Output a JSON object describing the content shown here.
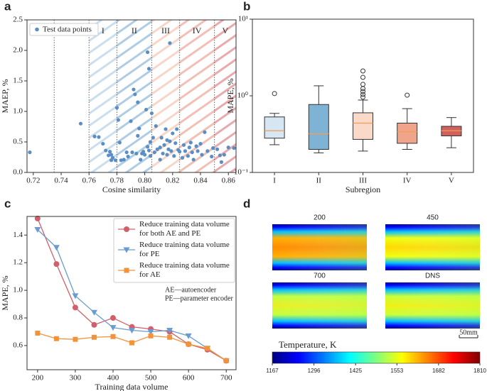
{
  "chart_data": [
    {
      "type": "scatter",
      "panel_label": "a",
      "xlabel": "Cosine similarity",
      "ylabel": "MAEP, %",
      "xlim": [
        0.7155,
        0.8655
      ],
      "ylim": [
        0,
        2.5
      ],
      "xticks": [
        0.72,
        0.74,
        0.76,
        0.78,
        {
          "value": 0.8,
          "label": "0.80"
        },
        0.82,
        0.84,
        0.86
      ],
      "yticks": [
        {
          "value": 0,
          "label": "0.0"
        },
        0.5,
        {
          "value": 1,
          "label": "1.0"
        },
        1.5,
        {
          "value": 2,
          "label": "2.0"
        },
        2.5
      ],
      "legend": "upper left",
      "boundaries": [
        0.735,
        0.76,
        0.78,
        0.805,
        0.825,
        0.85
      ],
      "regions": [
        {
          "label": "I",
          "color": "#9ec3e0"
        },
        {
          "label": "II",
          "color": "#6ea3cf"
        },
        {
          "label": "III",
          "color": "#f2b49a"
        },
        {
          "label": "IV",
          "color": "#e88a78"
        },
        {
          "label": "V",
          "color": "#d4646a"
        }
      ],
      "series": [
        {
          "name": "Test data points",
          "color": "#5a8ec4",
          "x": [
            0.7175,
            0.754,
            0.764,
            0.767,
            0.77,
            0.772,
            0.775,
            0.776,
            0.777,
            0.779,
            0.776,
            0.774,
            0.78,
            0.781,
            0.782,
            0.783,
            0.785,
            0.787,
            0.788,
            0.79,
            0.791,
            0.792,
            0.793,
            0.794,
            0.795,
            0.795,
            0.796,
            0.797,
            0.798,
            0.799,
            0.8,
            0.801,
            0.802,
            0.803,
            0.804,
            0.803,
            0.802,
            0.804,
            0.805,
            0.806,
            0.807,
            0.808,
            0.809,
            0.811,
            0.811,
            0.812,
            0.813,
            0.814,
            0.815,
            0.816,
            0.816,
            0.817,
            0.818,
            0.819,
            0.82,
            0.821,
            0.822,
            0.818,
            0.823,
            0.824,
            0.825,
            0.827,
            0.828,
            0.829,
            0.831,
            0.832,
            0.833,
            0.834,
            0.835,
            0.837,
            0.838,
            0.84,
            0.841,
            0.843,
            0.845,
            0.848,
            0.849,
            0.852,
            0.854,
            0.855,
            0.857,
            0.86,
            0.864
          ],
          "values": [
            0.33,
            0.8,
            0.59,
            0.58,
            0.47,
            0.36,
            0.34,
            0.29,
            0.24,
            0.2,
            0.2,
            0.28,
            1.06,
            0.86,
            0.49,
            0.2,
            0.21,
            0.33,
            0.26,
            0.84,
            0.33,
            1.36,
            1.28,
            0.31,
            1.15,
            0.6,
            0.72,
            0.21,
            0.31,
            0.34,
            0.29,
            1.03,
            0.42,
            0.36,
            0.27,
            1.7,
            1.97,
            0.5,
            0.97,
            0.57,
            0.33,
            0.76,
            0.38,
            0.41,
            0.21,
            0.57,
            0.31,
            0.45,
            0.71,
            0.29,
            0.53,
            0.38,
            0.51,
            0.35,
            0.64,
            0.27,
            0.48,
            2.12,
            0.71,
            0.37,
            0.34,
            0.24,
            0.45,
            0.35,
            0.27,
            0.41,
            0.49,
            0.33,
            0.21,
            0.43,
            0.35,
            0.47,
            0.29,
            0.66,
            0.35,
            0.26,
            0.4,
            0.38,
            0.28,
            0.17,
            0.29,
            0.41,
            0.4
          ]
        }
      ]
    },
    {
      "type": "box",
      "panel_label": "b",
      "xlabel": "Subregion",
      "ylabel": "MAPE, %",
      "ylog": true,
      "ylim": [
        0.1,
        10
      ],
      "yticks": [
        {
          "value": 0.1,
          "label": "10⁻¹"
        },
        {
          "value": 1,
          "label": "10⁰"
        },
        {
          "value": 10,
          "label": "10¹"
        }
      ],
      "categories": [
        "I",
        "II",
        "III",
        "IV",
        "V"
      ],
      "colors": [
        "#d6e6f2",
        "#7fb3d5",
        "#fbd9c9",
        "#f0a58b",
        "#d1615d"
      ],
      "median_color": "#f39c55",
      "boxes": [
        {
          "whislo": 0.23,
          "q1": 0.28,
          "med": 0.35,
          "q3": 0.53,
          "whishi": 0.59,
          "fliers": [
            1.07
          ]
        },
        {
          "whislo": 0.18,
          "q1": 0.2,
          "med": 0.32,
          "q3": 0.77,
          "whishi": 1.35,
          "fliers": []
        },
        {
          "whislo": 0.19,
          "q1": 0.27,
          "med": 0.44,
          "q3": 0.6,
          "whishi": 0.88,
          "fliers": [
            0.96,
            1.04,
            1.14,
            1.24,
            1.41,
            1.74,
            2.11
          ]
        },
        {
          "whislo": 0.2,
          "q1": 0.24,
          "med": 0.34,
          "q3": 0.44,
          "whishi": 0.68,
          "fliers": [
            1.02
          ]
        },
        {
          "whislo": 0.21,
          "q1": 0.3,
          "med": 0.35,
          "q3": 0.4,
          "whishi": 0.52,
          "fliers": []
        }
      ]
    },
    {
      "type": "line",
      "panel_label": "c",
      "xlabel": "Training data volume",
      "ylabel": "MAPE, %",
      "xlim": [
        172,
        726
      ],
      "ylim": [
        0.425,
        1.535
      ],
      "xticks": [
        200,
        300,
        400,
        500,
        600,
        700
      ],
      "yticks": [
        0.6,
        0.8,
        {
          "value": 1,
          "label": "1.0"
        },
        1.2,
        1.4
      ],
      "legend": "upper right",
      "annotations": [
        "AE—autoencoder",
        "PE—parameter encoder"
      ],
      "x": [
        200,
        250,
        300,
        350,
        400,
        450,
        500,
        550,
        600,
        650,
        700
      ],
      "series": [
        {
          "name": "Reduce training data volume for both AE and PE",
          "color": "#d1606a",
          "marker": "circle",
          "values": [
            1.52,
            1.19,
            0.875,
            0.75,
            0.8,
            0.735,
            0.72,
            0.7,
            0.61,
            0.57,
            0.49
          ]
        },
        {
          "name": "Reduce training data volume for PE",
          "color": "#6a9ccf",
          "marker": "triangle-down",
          "values": [
            1.44,
            1.31,
            0.96,
            0.84,
            0.73,
            0.71,
            0.7,
            0.71,
            0.67,
            0.58,
            0.49
          ]
        },
        {
          "name": "Reduce training data volume for AE",
          "color": "#f2923a",
          "marker": "square",
          "values": [
            0.69,
            0.65,
            0.645,
            0.66,
            0.665,
            0.62,
            0.67,
            0.66,
            0.61,
            0.58,
            0.49
          ]
        }
      ]
    },
    {
      "type": "heatmap",
      "panel_label": "d",
      "panels": [
        {
          "title": "200"
        },
        {
          "title": "450"
        },
        {
          "title": "700"
        },
        {
          "title": "DNS"
        }
      ],
      "scale_bar": "50mm",
      "colorbar": {
        "label": "Temperature, K",
        "clim": [
          1167,
          1810
        ],
        "ticks": [
          1167,
          1296,
          1425,
          1553,
          1682,
          1810
        ]
      }
    }
  ]
}
